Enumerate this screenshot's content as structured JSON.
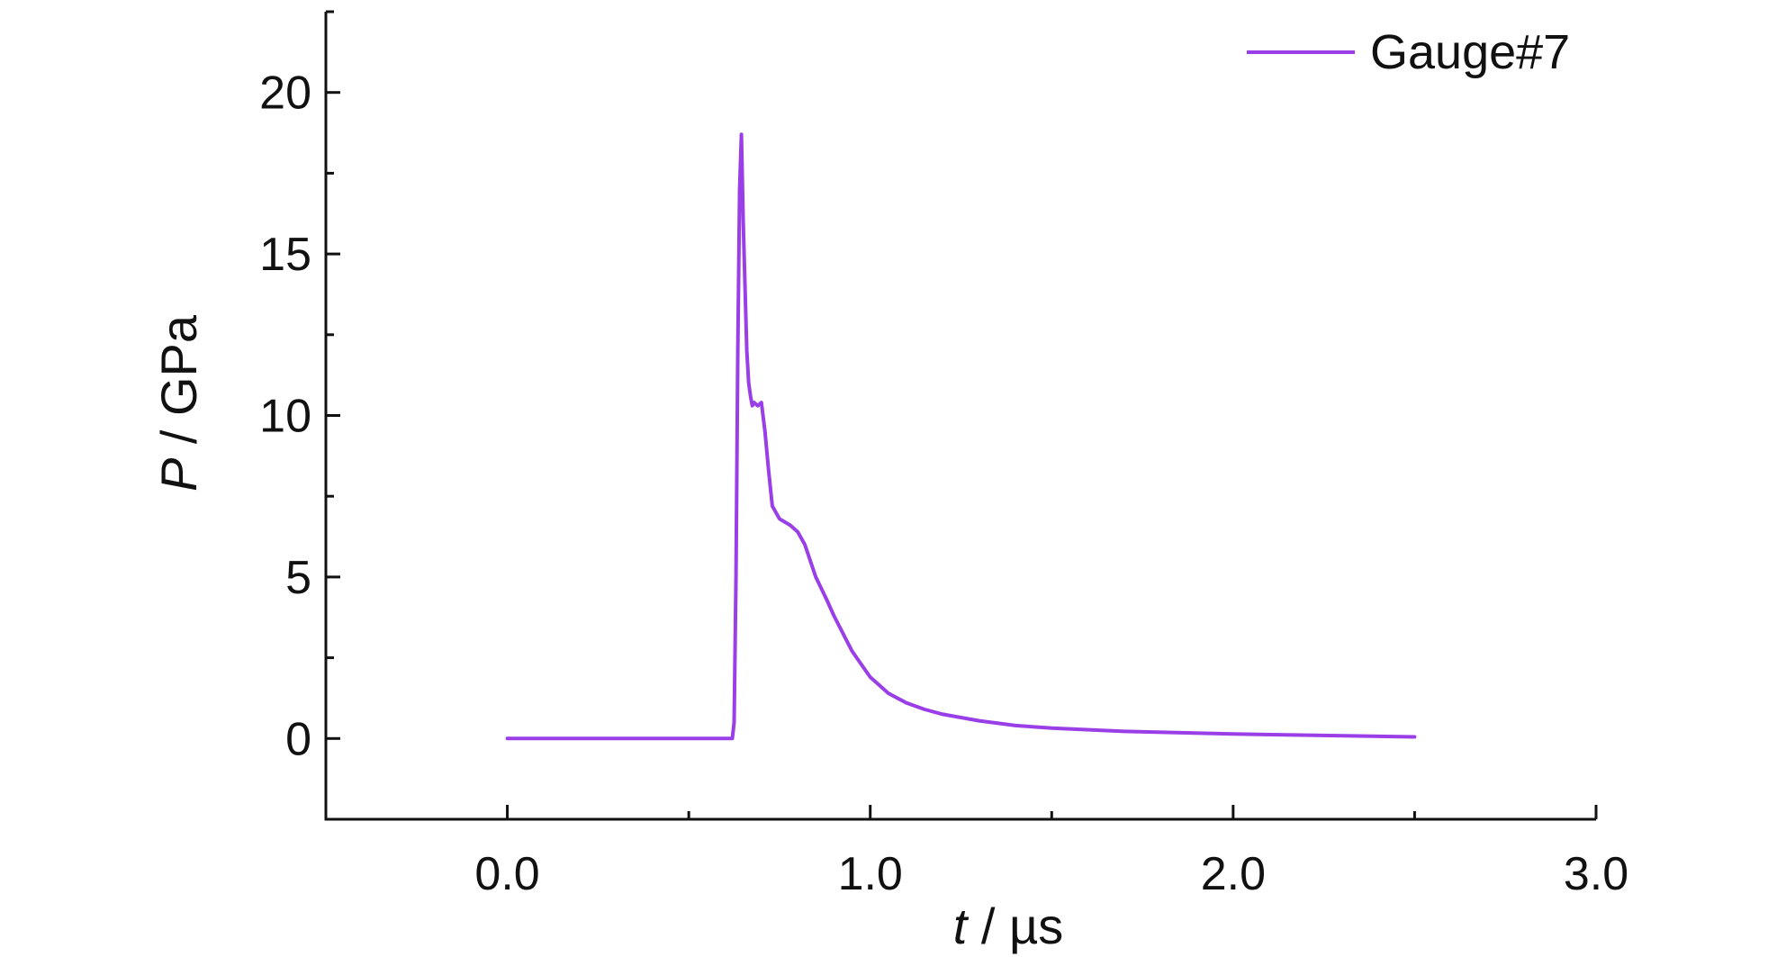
{
  "colors": {
    "series": "#9a3fe8",
    "axis": "#111111",
    "background": "#ffffff"
  },
  "chart_data": {
    "type": "line",
    "title": "",
    "xlabel": {
      "var": "t",
      "unit": " / µs"
    },
    "ylabel": {
      "var": "P",
      "unit": " / GPa"
    },
    "xlim": [
      -0.5,
      3.0
    ],
    "ylim": [
      -2.5,
      22.5
    ],
    "xticks": [
      0.0,
      1.0,
      2.0,
      3.0
    ],
    "xtick_labels": [
      "0.0",
      "1.0",
      "2.0",
      "3.0"
    ],
    "xminor": [
      -0.5,
      0.5,
      1.5,
      2.5
    ],
    "yticks": [
      0,
      5,
      10,
      15,
      20
    ],
    "ytick_labels": [
      "0",
      "5",
      "10",
      "15",
      "20"
    ],
    "yminor": [
      -2.5,
      2.5,
      7.5,
      12.5,
      17.5,
      22.5
    ],
    "grid": false,
    "legend_position": "top-right",
    "series": [
      {
        "name": "Gauge#7",
        "color": "#9a3fe8",
        "x": [
          0.0,
          0.62,
          0.625,
          0.63,
          0.635,
          0.64,
          0.645,
          0.65,
          0.655,
          0.66,
          0.665,
          0.67,
          0.675,
          0.68,
          0.69,
          0.7,
          0.71,
          0.72,
          0.73,
          0.75,
          0.78,
          0.8,
          0.82,
          0.85,
          0.88,
          0.9,
          0.95,
          1.0,
          1.05,
          1.1,
          1.15,
          1.2,
          1.3,
          1.4,
          1.5,
          1.7,
          2.0,
          2.5
        ],
        "y": [
          0.0,
          0.0,
          0.5,
          5.0,
          12.0,
          17.0,
          18.7,
          16.0,
          14.0,
          12.0,
          11.0,
          10.6,
          10.3,
          10.4,
          10.3,
          10.4,
          9.5,
          8.3,
          7.2,
          6.8,
          6.6,
          6.4,
          6.0,
          5.0,
          4.3,
          3.8,
          2.7,
          1.9,
          1.4,
          1.1,
          0.9,
          0.75,
          0.55,
          0.4,
          0.32,
          0.22,
          0.14,
          0.05
        ]
      }
    ]
  }
}
